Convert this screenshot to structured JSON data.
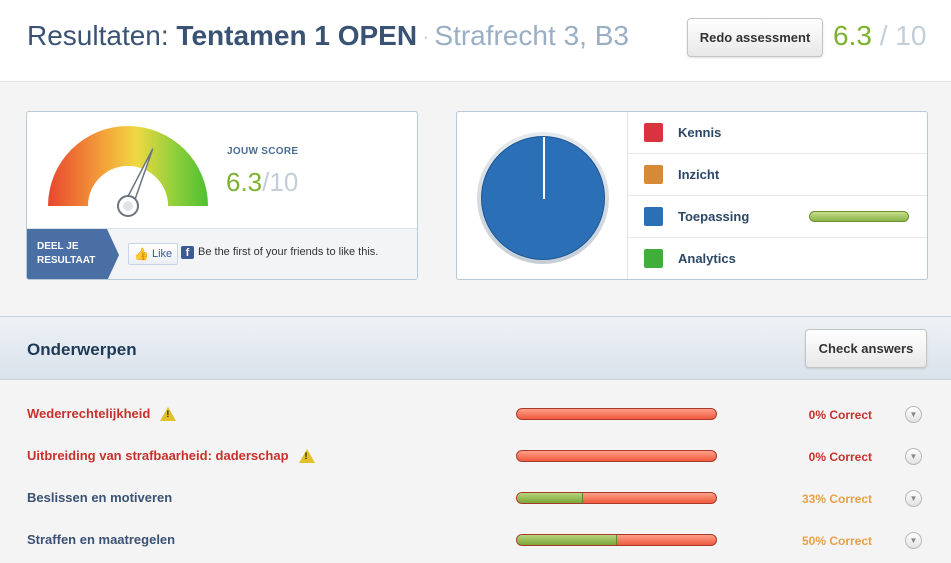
{
  "header": {
    "title_prefix": "Resultaten: ",
    "title_main": "Tentamen 1 OPEN",
    "title_sep": "·",
    "title_sub": "Strafrecht 3, B3",
    "redo_label": "Redo assessment",
    "score_value": "6.3",
    "score_sep": " / ",
    "score_max": "10"
  },
  "score_panel": {
    "label": "JOUW SCORE",
    "value": "6.3",
    "sep": "/",
    "max": "10",
    "gauge_fraction": 0.63,
    "share_line1": "DEEL JE",
    "share_line2": "RESULTAAT",
    "like_label": "Like",
    "fb_letter": "f",
    "fb_text": "Be the first of your friends to like this."
  },
  "categories": {
    "items": [
      {
        "label": "Kennis",
        "color": "#d9333f",
        "bar": false
      },
      {
        "label": "Inzicht",
        "color": "#d68a35",
        "bar": false
      },
      {
        "label": "Toepassing",
        "color": "#2b6fb6",
        "bar": true
      },
      {
        "label": "Analytics",
        "color": "#3fae3b",
        "bar": false
      }
    ]
  },
  "topics": {
    "title": "Onderwerpen",
    "check_label": "Check answers",
    "items": [
      {
        "name": "Wederrechtelijkheid",
        "warning": true,
        "pct": 0,
        "label": "0% Correct",
        "status": "fail"
      },
      {
        "name": "Uitbreiding van strafbaarheid: daderschap",
        "warning": true,
        "pct": 0,
        "label": "0% Correct",
        "status": "fail"
      },
      {
        "name": "Beslissen en motiveren",
        "warning": false,
        "pct": 33,
        "label": "33% Correct",
        "status": "mid"
      },
      {
        "name": "Straffen en maatregelen",
        "warning": false,
        "pct": 50,
        "label": "50% Correct",
        "status": "mid"
      }
    ]
  }
}
